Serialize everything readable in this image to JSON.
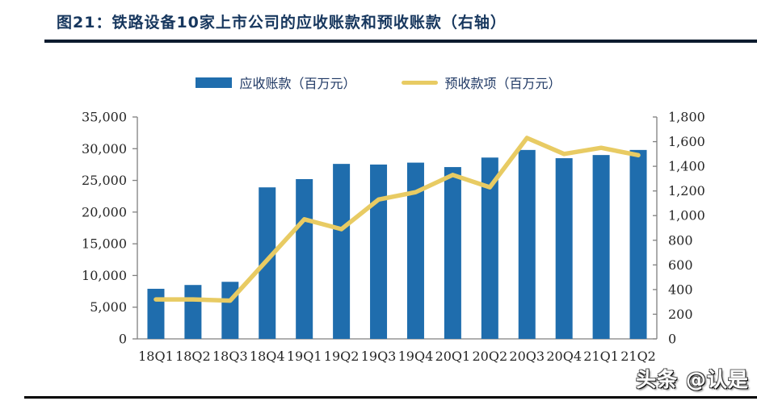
{
  "header": {
    "title": "图21：铁路设备10家上市公司的应收账款和预收账款（右轴）"
  },
  "legend": {
    "items": [
      {
        "label": "应收账款（百万元）",
        "type": "bar",
        "color": "#1F6DAD"
      },
      {
        "label": "预收款项（百万元）",
        "type": "line",
        "color": "#E8CB63"
      }
    ]
  },
  "chart_data": {
    "type": "bar",
    "title": "铁路设备10家上市公司的应收账款和预收账款（右轴）",
    "categories": [
      "18Q1",
      "18Q2",
      "18Q3",
      "18Q4",
      "19Q1",
      "19Q2",
      "19Q3",
      "19Q4",
      "20Q1",
      "20Q2",
      "20Q3",
      "20Q4",
      "21Q1",
      "21Q2"
    ],
    "series": [
      {
        "name": "应收账款（百万元）",
        "type": "bar",
        "axis": "left",
        "color": "#1F6DAD",
        "values": [
          7900,
          8500,
          9000,
          23900,
          25200,
          27600,
          27500,
          27800,
          27100,
          28600,
          29800,
          28500,
          29000,
          29800
        ]
      },
      {
        "name": "预收款项（百万元）",
        "type": "line",
        "axis": "right",
        "color": "#E8CB63",
        "values": [
          320,
          320,
          310,
          640,
          970,
          890,
          1130,
          1190,
          1330,
          1230,
          1630,
          1500,
          1550,
          1490
        ]
      }
    ],
    "left_axis": {
      "min": 0,
      "max": 35000,
      "step": 5000,
      "tick_labels": [
        "0",
        "5,000",
        "10,000",
        "15,000",
        "20,000",
        "25,000",
        "30,000",
        "35,000"
      ]
    },
    "right_axis": {
      "min": 0,
      "max": 1800,
      "step": 200,
      "tick_labels": [
        "0",
        "200",
        "400",
        "600",
        "800",
        "1,000",
        "1,200",
        "1,400",
        "1,600",
        "1,800"
      ]
    },
    "grid": false,
    "legend_position": "top",
    "axis_color": "#808080"
  },
  "watermark": {
    "text": "头条 @认是"
  }
}
